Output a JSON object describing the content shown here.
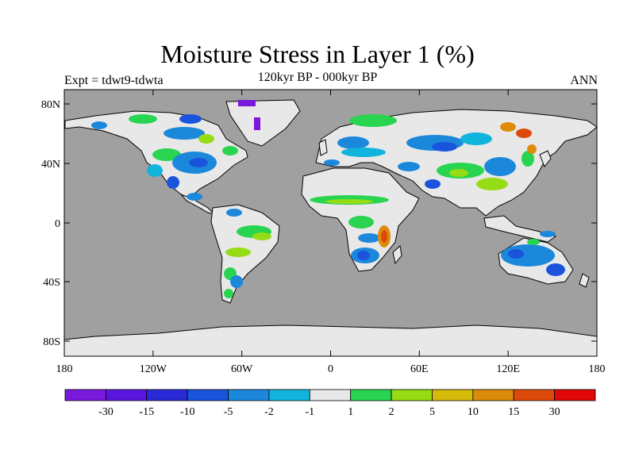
{
  "header": {
    "title": "Moisture Stress in Layer 1 (%)",
    "subtitle": "120kyr BP - 000kyr BP",
    "left_label": "Expt = tdwt9-tdwta",
    "right_label": "ANN"
  },
  "map": {
    "lat_ticks": [
      "80N",
      "40N",
      "0",
      "40S",
      "80S"
    ],
    "lon_ticks": [
      "180",
      "120W",
      "60W",
      "0",
      "60E",
      "120E",
      "180"
    ],
    "ocean_color": "#a0a0a0"
  },
  "legend": {
    "labels": [
      "-30",
      "-15",
      "-10",
      "-5",
      "-2",
      "-1",
      "1",
      "2",
      "5",
      "10",
      "15",
      "30"
    ],
    "colors": [
      "#7a18dc",
      "#5a16dc",
      "#2a2ad6",
      "#1a54dc",
      "#1c88dc",
      "#10b4dc",
      "#e8e8e8",
      "#28d450",
      "#96dc14",
      "#d6ba0a",
      "#dc8c0a",
      "#dc4a0a",
      "#e00808"
    ]
  }
}
